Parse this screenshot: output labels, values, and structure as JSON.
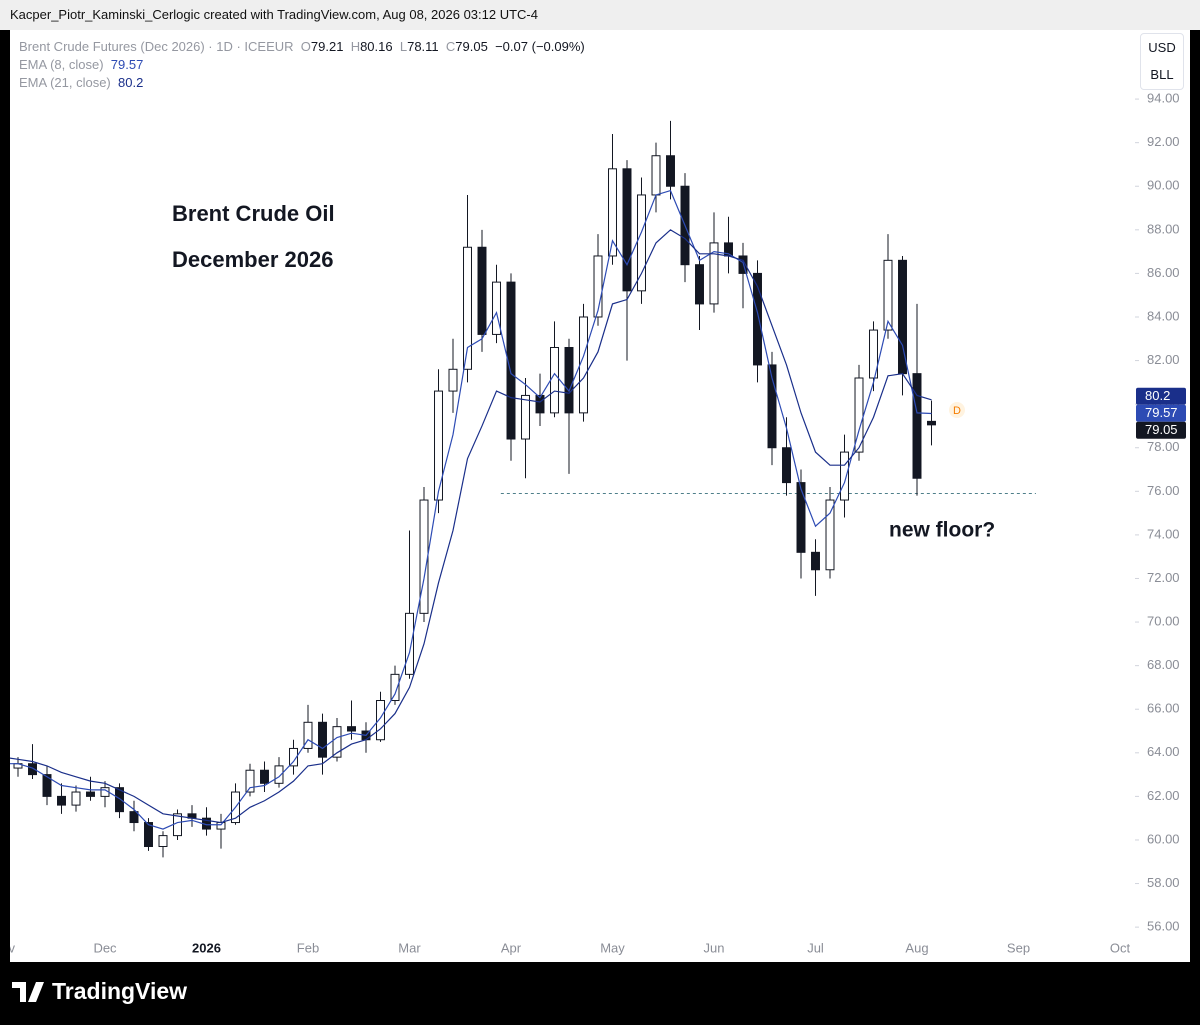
{
  "header": "Kacper_Piotr_Kaminski_Cerlogic created with TradingView.com, Aug 08, 2026 03:12 UTC-4",
  "chart_data": {
    "type": "candlestick",
    "title": "Brent Crude Futures (Dec 2026) · 1D · ICEEUR",
    "ohlc_letters": [
      "O",
      "H",
      "L",
      "C"
    ],
    "change": {
      "value": -0.07,
      "label": "−0.07"
    },
    "change_pct": {
      "value": -0.09,
      "label": "(−0.09%)"
    },
    "categories": [
      "Nov",
      null,
      null,
      null,
      null,
      null,
      null,
      "Dec",
      null,
      null,
      null,
      null,
      null,
      null,
      "2026",
      null,
      null,
      null,
      null,
      null,
      null,
      "Feb",
      null,
      null,
      null,
      null,
      null,
      null,
      "Mar",
      null,
      null,
      null,
      null,
      null,
      null,
      "Apr",
      null,
      null,
      null,
      null,
      null,
      null,
      "May",
      null,
      null,
      null,
      null,
      null,
      null,
      "Jun",
      null,
      null,
      null,
      null,
      null,
      null,
      "Jul",
      null,
      null,
      null,
      null,
      null,
      null,
      "Aug",
      null,
      null,
      null,
      null,
      null,
      null,
      "Sep",
      null,
      null,
      null,
      null,
      null,
      null,
      "Oct"
    ],
    "open": [
      63.6,
      63.3,
      63.5,
      63.0,
      62.0,
      61.6,
      62.2,
      62.0,
      62.4,
      61.3,
      60.8,
      59.7,
      60.2,
      61.2,
      61.0,
      60.5,
      60.8,
      62.2,
      63.2,
      62.6,
      63.4,
      64.2,
      65.4,
      63.8,
      65.2,
      65.0,
      64.6,
      66.4,
      67.6,
      70.4,
      75.6,
      80.6,
      81.6,
      87.2,
      83.2,
      85.6,
      78.4,
      80.4,
      79.6,
      82.6,
      79.6,
      84.0,
      86.8,
      90.8,
      85.2,
      89.6,
      91.4,
      90.0,
      86.4,
      84.6,
      87.4,
      86.8,
      86.0,
      81.8,
      78.0,
      76.4,
      73.2,
      72.4,
      75.6,
      77.8,
      81.2,
      83.4,
      86.6,
      81.4,
      79.21,
      null,
      null,
      null,
      null,
      null,
      null,
      null,
      null,
      null,
      null,
      null,
      null,
      null
    ],
    "high": [
      64.2,
      63.8,
      64.4,
      63.4,
      62.6,
      62.5,
      62.9,
      62.7,
      62.6,
      61.8,
      61.0,
      60.4,
      61.4,
      61.6,
      61.5,
      61.2,
      62.6,
      63.5,
      63.6,
      63.8,
      64.6,
      66.2,
      65.8,
      65.6,
      66.4,
      65.4,
      66.8,
      68.0,
      74.2,
      76.2,
      81.6,
      83.0,
      89.6,
      88.0,
      86.4,
      86.0,
      81.2,
      81.4,
      83.8,
      83.0,
      84.6,
      87.8,
      92.4,
      91.2,
      90.4,
      92.0,
      93.0,
      90.6,
      86.8,
      88.8,
      88.6,
      87.4,
      86.6,
      82.4,
      79.4,
      77.0,
      73.8,
      76.2,
      78.6,
      81.8,
      83.8,
      87.8,
      86.8,
      84.6,
      80.16,
      null,
      null,
      null,
      null,
      null,
      null,
      null,
      null,
      null,
      null,
      null,
      null,
      null
    ],
    "low": [
      63.0,
      62.9,
      62.8,
      61.6,
      61.2,
      61.3,
      61.8,
      61.5,
      61.0,
      60.4,
      59.5,
      59.2,
      60.0,
      60.6,
      60.2,
      59.6,
      60.7,
      62.0,
      62.2,
      62.4,
      63.0,
      64.0,
      63.0,
      63.6,
      64.6,
      64.0,
      64.5,
      66.2,
      67.4,
      70.0,
      75.0,
      79.6,
      81.0,
      82.4,
      82.8,
      77.4,
      76.6,
      79.0,
      79.4,
      76.8,
      79.2,
      83.6,
      86.4,
      82.0,
      84.6,
      88.8,
      89.4,
      85.6,
      83.4,
      84.2,
      86.0,
      84.4,
      81.0,
      77.2,
      75.8,
      72.0,
      71.2,
      72.0,
      74.8,
      77.4,
      80.6,
      83.0,
      80.4,
      75.8,
      78.11,
      null,
      null,
      null,
      null,
      null,
      null,
      null,
      null,
      null,
      null,
      null,
      null,
      null
    ],
    "close": [
      63.3,
      63.5,
      63.0,
      62.0,
      61.6,
      62.2,
      62.0,
      62.4,
      61.3,
      60.8,
      59.7,
      60.2,
      61.2,
      61.0,
      60.5,
      60.8,
      62.2,
      63.2,
      62.6,
      63.4,
      64.2,
      65.4,
      63.8,
      65.2,
      65.0,
      64.6,
      66.4,
      67.6,
      70.4,
      75.6,
      80.6,
      81.6,
      87.2,
      83.2,
      85.6,
      78.4,
      80.4,
      79.6,
      82.6,
      79.6,
      84.0,
      86.8,
      90.8,
      85.2,
      89.6,
      91.4,
      90.0,
      86.4,
      84.6,
      87.4,
      86.8,
      86.0,
      81.8,
      78.0,
      76.4,
      73.2,
      72.4,
      75.6,
      77.8,
      81.2,
      83.4,
      86.6,
      81.4,
      76.6,
      79.05,
      null,
      null,
      null,
      null,
      null,
      null,
      null,
      null,
      null,
      null,
      null,
      null,
      null
    ],
    "up_color": "#ffffff",
    "down_color": "#131722",
    "wick_color": "#131722",
    "series": [
      {
        "name": "EMA (8, close)",
        "color": "#2d4bb4",
        "values": [
          63.5,
          63.5,
          63.3,
          62.9,
          62.5,
          62.4,
          62.3,
          62.3,
          61.9,
          61.4,
          60.7,
          60.5,
          60.8,
          60.9,
          60.7,
          60.7,
          61.5,
          62.4,
          62.5,
          62.9,
          63.6,
          64.6,
          64.2,
          64.7,
          64.9,
          64.8,
          65.6,
          66.7,
          68.6,
          72.0,
          76.0,
          78.6,
          82.6,
          83.0,
          84.2,
          81.4,
          80.9,
          80.3,
          81.4,
          80.6,
          82.2,
          84.3,
          87.5,
          86.4,
          87.9,
          89.6,
          89.8,
          88.2,
          86.6,
          87.0,
          86.9,
          86.5,
          84.2,
          81.2,
          78.9,
          76.1,
          74.4,
          75.0,
          76.4,
          78.8,
          81.0,
          83.8,
          82.7,
          79.6,
          79.57,
          null,
          null,
          null,
          null,
          null,
          null,
          null,
          null,
          null,
          null,
          null,
          null,
          null
        ]
      },
      {
        "name": "EMA (21, close)",
        "color": "#1a2f8a",
        "values": [
          63.8,
          63.7,
          63.6,
          63.4,
          63.1,
          62.9,
          62.7,
          62.6,
          62.3,
          62.0,
          61.6,
          61.2,
          61.1,
          61.0,
          60.9,
          60.8,
          61.0,
          61.5,
          61.8,
          62.2,
          62.7,
          63.4,
          63.5,
          64.0,
          64.4,
          64.6,
          65.1,
          65.8,
          67.0,
          69.0,
          71.8,
          74.2,
          77.5,
          79.0,
          80.6,
          80.3,
          80.2,
          80.1,
          80.6,
          80.5,
          81.2,
          82.4,
          84.6,
          84.8,
          86.0,
          87.4,
          88.0,
          87.6,
          86.9,
          86.9,
          86.8,
          86.6,
          85.4,
          83.6,
          81.8,
          79.6,
          77.8,
          77.2,
          77.2,
          78.0,
          79.4,
          81.3,
          81.4,
          80.4,
          80.2,
          null,
          null,
          null,
          null,
          null,
          null,
          null,
          null,
          null,
          null,
          null,
          null,
          null
        ]
      }
    ],
    "ylim": [
      54.4,
      97.17
    ],
    "yticks": [
      {
        "value": 56,
        "label": "56.00"
      },
      {
        "value": 58,
        "label": "58.00"
      },
      {
        "value": 60,
        "label": "60.00"
      },
      {
        "value": 62,
        "label": "62.00"
      },
      {
        "value": 64,
        "label": "64.00"
      },
      {
        "value": 66,
        "label": "66.00"
      },
      {
        "value": 68,
        "label": "68.00"
      },
      {
        "value": 70,
        "label": "70.00"
      },
      {
        "value": 72,
        "label": "72.00"
      },
      {
        "value": 74,
        "label": "74.00"
      },
      {
        "value": 76,
        "label": "76.00"
      },
      {
        "value": 78,
        "label": "78.00"
      },
      {
        "value": 80,
        "label": "80.00"
      },
      {
        "value": 82,
        "label": "82.00"
      },
      {
        "value": 84,
        "label": "84.00"
      },
      {
        "value": 86,
        "label": "86.00"
      },
      {
        "value": 88,
        "label": "88.00"
      },
      {
        "value": 90,
        "label": "90.00"
      },
      {
        "value": 92,
        "label": "92.00"
      },
      {
        "value": 94,
        "label": "94.00"
      }
    ],
    "grid": false,
    "support_level": 75.9,
    "annotations": [
      "Brent Crude Oil",
      "December 2026",
      "new floor?"
    ],
    "currency": "USD",
    "unit": "BLL",
    "marker": "D"
  },
  "footer": "TradingView"
}
